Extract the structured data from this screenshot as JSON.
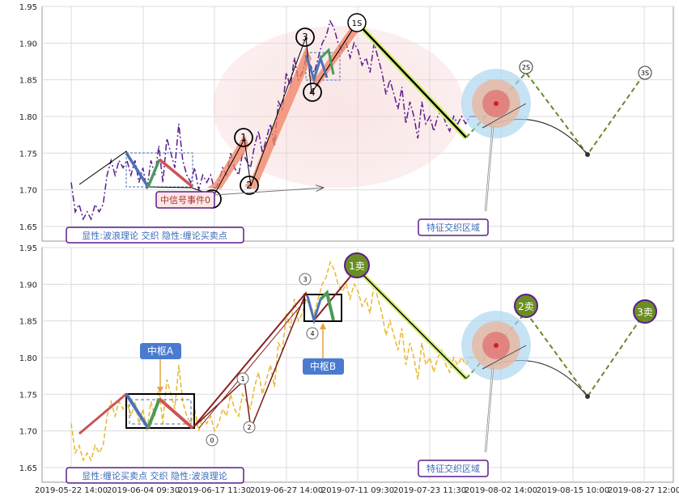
{
  "chart_data": [
    {
      "type": "line",
      "panel": "top",
      "ylim": [
        1.63,
        1.95
      ],
      "yticks": [
        1.65,
        1.7,
        1.75,
        1.8,
        1.85,
        1.9,
        1.95
      ],
      "ytick_labels": [
        "1.65",
        "1.70",
        "1.75",
        "1.80",
        "1.85",
        "1.90",
        "1.95"
      ],
      "grid": true,
      "price_series": {
        "style": "dash-dot",
        "color": "#5b1d8c",
        "x": [
          0,
          0.5,
          1,
          1.5,
          2,
          2.5,
          3,
          3.5,
          4,
          4.5,
          5,
          5.5,
          6,
          6.5,
          7,
          7.5,
          8,
          8.5,
          9,
          9.5,
          10,
          10.5,
          11,
          11.5,
          12,
          12.5,
          13,
          13.5,
          14,
          14.5,
          15,
          15.5,
          16,
          16.5,
          17,
          17.5,
          18,
          18.5,
          19,
          19.5,
          20,
          20.5,
          21,
          21.5,
          22,
          22.5,
          23,
          23.5,
          24,
          24.5,
          25,
          25.5,
          26,
          26.5,
          27,
          27.5,
          28,
          28.5,
          29,
          29.5,
          30,
          30.5,
          31,
          31.5,
          32,
          32.5,
          33,
          33.5,
          34,
          34.5,
          35,
          35.5,
          36,
          36.5,
          37,
          37.5,
          38,
          38.5,
          39,
          39.5,
          40,
          40.5,
          41,
          41.5,
          42,
          42.5,
          43,
          43.5,
          44,
          44.5,
          45,
          45.5,
          46,
          46.5,
          47,
          47.5,
          48,
          48.5,
          49,
          49.5,
          50,
          50.5,
          51,
          51.5,
          52
        ],
        "y": [
          1.71,
          1.67,
          1.68,
          1.66,
          1.67,
          1.66,
          1.68,
          1.67,
          1.68,
          1.72,
          1.74,
          1.72,
          1.74,
          1.73,
          1.74,
          1.72,
          1.74,
          1.71,
          1.73,
          1.7,
          1.74,
          1.72,
          1.76,
          1.71,
          1.77,
          1.75,
          1.73,
          1.79,
          1.74,
          1.72,
          1.71,
          1.73,
          1.7,
          1.72,
          1.71,
          1.72,
          1.7,
          1.71,
          1.73,
          1.72,
          1.75,
          1.73,
          1.72,
          1.75,
          1.74,
          1.73,
          1.76,
          1.78,
          1.75,
          1.77,
          1.79,
          1.76,
          1.82,
          1.81,
          1.86,
          1.84,
          1.88,
          1.85,
          1.86,
          1.88,
          1.87,
          1.86,
          1.88,
          1.9,
          1.91,
          1.93,
          1.92,
          1.9,
          1.89,
          1.9,
          1.88,
          1.9,
          1.89,
          1.87,
          1.88,
          1.86,
          1.9,
          1.88,
          1.86,
          1.83,
          1.85,
          1.83,
          1.81,
          1.84,
          1.79,
          1.82,
          1.8,
          1.77,
          1.82,
          1.79,
          1.8,
          1.78,
          1.8,
          1.81,
          1.79,
          1.78,
          1.8,
          1.79,
          1.8,
          1.79,
          1.8,
          1.8,
          1.8,
          1.8,
          1.8
        ]
      },
      "wave_points": [
        {
          "label": "0",
          "x": 17,
          "y": 1.7
        },
        {
          "label": "1",
          "x": 20.5,
          "y": 1.77
        },
        {
          "label": "2",
          "x": 22,
          "y": 1.705
        },
        {
          "label": "3",
          "x": 29,
          "y": 1.91
        },
        {
          "label": "4",
          "x": 29.5,
          "y": 1.88
        },
        {
          "label": "5",
          "x": 36,
          "y": 1.93
        }
      ],
      "sell_point_labels": [
        "1S",
        "2S",
        "3S"
      ],
      "annotations": [
        "中信号事件0",
        "特征交织区域"
      ],
      "caption": "显性:波浪理论 交织 隐性:缠论买卖点"
    },
    {
      "type": "line",
      "panel": "bottom",
      "ylim": [
        1.63,
        1.95
      ],
      "yticks": [
        1.65,
        1.7,
        1.75,
        1.8,
        1.85,
        1.9,
        1.95
      ],
      "ytick_labels": [
        "1.65",
        "1.70",
        "1.75",
        "1.80",
        "1.85",
        "1.90",
        "1.95"
      ],
      "grid": true,
      "price_series": {
        "style": "dashed",
        "color": "#e8b830"
      },
      "pivot_labels": [
        "中枢A",
        "中枢B"
      ],
      "sell_points": [
        "1卖",
        "2卖",
        "3卖"
      ],
      "wave_labels": [
        "0",
        "1",
        "2",
        "3",
        "4"
      ],
      "annotations": [
        "特征交织区域"
      ],
      "caption": "显性:缠论买卖点 交织 隐性:波浪理论"
    }
  ],
  "x_axis": {
    "tick_labels": [
      "2019-05-22 14:00",
      "2019-06-04 09:30",
      "2019-06-17 11:30",
      "2019-06-27 14:00",
      "2019-07-11 09:30",
      "2019-07-23 11:30",
      "2019-08-02 14:00",
      "2019-08-15 10:00",
      "2019-08-27 12:00"
    ]
  },
  "colors": {
    "price_top": "#5b1d8c",
    "price_bottom": "#e8b830",
    "wave_black": "#000000",
    "impulse_orange": "#f08060",
    "stroke_blue": "#4a72b8",
    "stroke_green": "#4a9a5a",
    "stroke_red": "#cc5555",
    "future_dash": "#6a8a2a",
    "sell_fill": "#6b8e23",
    "label_border": "#5b1d8c",
    "caption_text": "#3a6ab8",
    "pivot_fill": "#4a7bd0"
  }
}
